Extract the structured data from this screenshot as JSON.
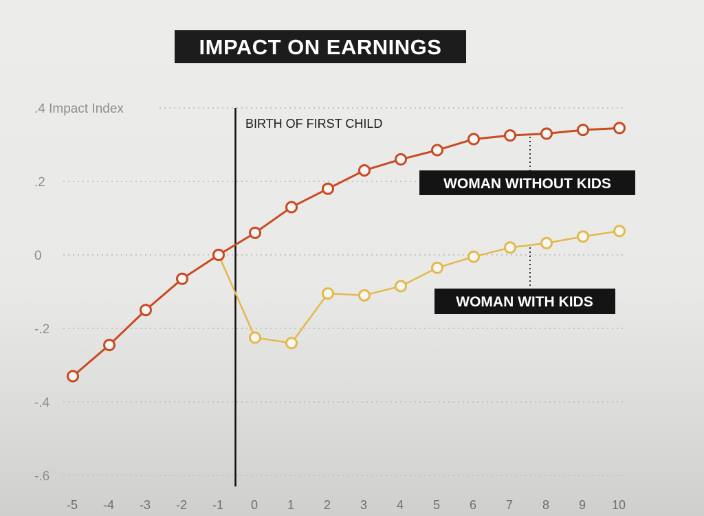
{
  "chart_data": {
    "type": "line",
    "title": "IMPACT ON EARNINGS",
    "ylabel": "Impact Index",
    "ylim": [
      -0.6,
      0.4
    ],
    "yticks": [
      {
        "value": 0.4,
        "label": ".4"
      },
      {
        "value": 0.2,
        "label": ".2"
      },
      {
        "value": 0,
        "label": "0"
      },
      {
        "value": -0.2,
        "label": "-.2"
      },
      {
        "value": -0.4,
        "label": "-.4"
      },
      {
        "value": -0.6,
        "label": "-.6"
      }
    ],
    "x": [
      -5,
      -4,
      -3,
      -2,
      -1,
      0,
      1,
      2,
      3,
      4,
      5,
      6,
      7,
      8,
      9,
      10
    ],
    "x_tick_labels": [
      "-5",
      "-4",
      "-3",
      "-2",
      "-1",
      "0",
      "1",
      "2",
      "3",
      "4",
      "5",
      "6",
      "7",
      "8",
      "9",
      "10"
    ],
    "grid": true,
    "annotation": {
      "x": -0.5,
      "label": "BIRTH OF FIRST CHILD"
    },
    "series": [
      {
        "name": "WOMAN WITHOUT KIDS",
        "color": "#c94a22",
        "x": [
          -5,
          -4,
          -3,
          -2,
          -1,
          0,
          1,
          2,
          3,
          4,
          5,
          6,
          7,
          8,
          9,
          10
        ],
        "values": [
          -0.33,
          -0.245,
          -0.15,
          -0.065,
          0.0,
          0.06,
          0.13,
          0.18,
          0.23,
          0.26,
          0.285,
          0.315,
          0.325,
          0.33,
          0.34,
          0.345
        ]
      },
      {
        "name": "WOMAN WITH KIDS",
        "color": "#e3b94b",
        "x": [
          -1,
          0,
          1,
          2,
          3,
          4,
          5,
          6,
          7,
          8,
          9,
          10
        ],
        "values": [
          0.0,
          -0.225,
          -0.24,
          -0.105,
          -0.11,
          -0.085,
          -0.035,
          -0.005,
          0.02,
          0.032,
          0.05,
          0.065
        ]
      }
    ]
  }
}
